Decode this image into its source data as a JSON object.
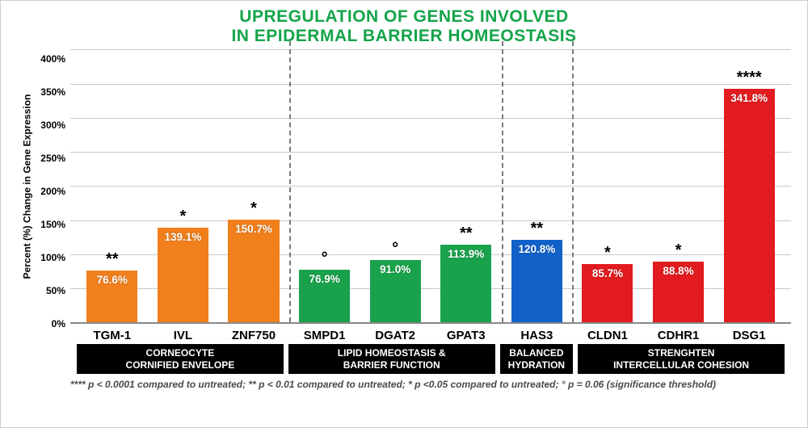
{
  "chart": {
    "type": "bar",
    "title_line1": "UPREGULATION OF GENES INVOLVED",
    "title_line2": "IN EPIDERMAL BARRIER HOMEOSTASIS",
    "title_color": "#14a44a",
    "title_fontsize": 21,
    "y_label": "Percent (%) Change in Gene Expression",
    "ylim": [
      0,
      400
    ],
    "ytick_step": 50,
    "y_ticks": [
      "0%",
      "50%",
      "100%",
      "150%",
      "200%",
      "250%",
      "300%",
      "350%",
      "400%"
    ],
    "background_color": "#ffffff",
    "grid_color": "#c9c9c9",
    "axis_color": "#888888",
    "label_fontsize": 12,
    "xtick_fontsize": 15,
    "bar_width": 0.72,
    "bars": [
      {
        "label": "TGM-1",
        "value": 76.6,
        "display": "76.6%",
        "sig": "**",
        "color": "#f07f1c",
        "group": 0
      },
      {
        "label": "IVL",
        "value": 139.1,
        "display": "139.1%",
        "sig": "*",
        "color": "#f07f1c",
        "group": 0
      },
      {
        "label": "ZNF750",
        "value": 150.7,
        "display": "150.7%",
        "sig": "*",
        "color": "#f07f1c",
        "group": 0
      },
      {
        "label": "SMPD1",
        "value": 76.9,
        "display": "76.9%",
        "sig": "°",
        "color": "#19a24b",
        "group": 1
      },
      {
        "label": "DGAT2",
        "value": 91.0,
        "display": "91.0%",
        "sig": "°",
        "color": "#19a24b",
        "group": 1
      },
      {
        "label": "GPAT3",
        "value": 113.9,
        "display": "113.9%",
        "sig": "**",
        "color": "#19a24b",
        "group": 1
      },
      {
        "label": "HAS3",
        "value": 120.8,
        "display": "120.8%",
        "sig": "**",
        "color": "#1161c9",
        "group": 2
      },
      {
        "label": "CLDN1",
        "value": 85.7,
        "display": "85.7%",
        "sig": "*",
        "color": "#e11b1f",
        "group": 3
      },
      {
        "label": "CDHR1",
        "value": 88.8,
        "display": "88.8%",
        "sig": "*",
        "color": "#e11b1f",
        "group": 3
      },
      {
        "label": "DSG1",
        "value": 341.8,
        "display": "341.8%",
        "sig": "****",
        "color": "#e11b1f",
        "group": 3
      }
    ],
    "groups": [
      {
        "label": "CORNEOCYTE\nCORNIFIED ENVELOPE",
        "span": 3
      },
      {
        "label": "LIPID HOMEOSTASIS &\nBARRIER FUNCTION",
        "span": 3
      },
      {
        "label": "BALANCED\nHYDRATION",
        "span": 1
      },
      {
        "label": "STRENGHTEN\nINTERCELLULAR COHESION",
        "span": 3
      }
    ],
    "group_bg": "#000000",
    "group_color": "#ffffff",
    "separator_color": "#7a7a7a",
    "val_text_color": "#ffffff",
    "sig_color": "#000000",
    "footnote": "**** p < 0.0001 compared to untreated; ** p < 0.01 compared to untreated; * p <0.05 compared to untreated; ° p = 0.06 (significance threshold)"
  }
}
